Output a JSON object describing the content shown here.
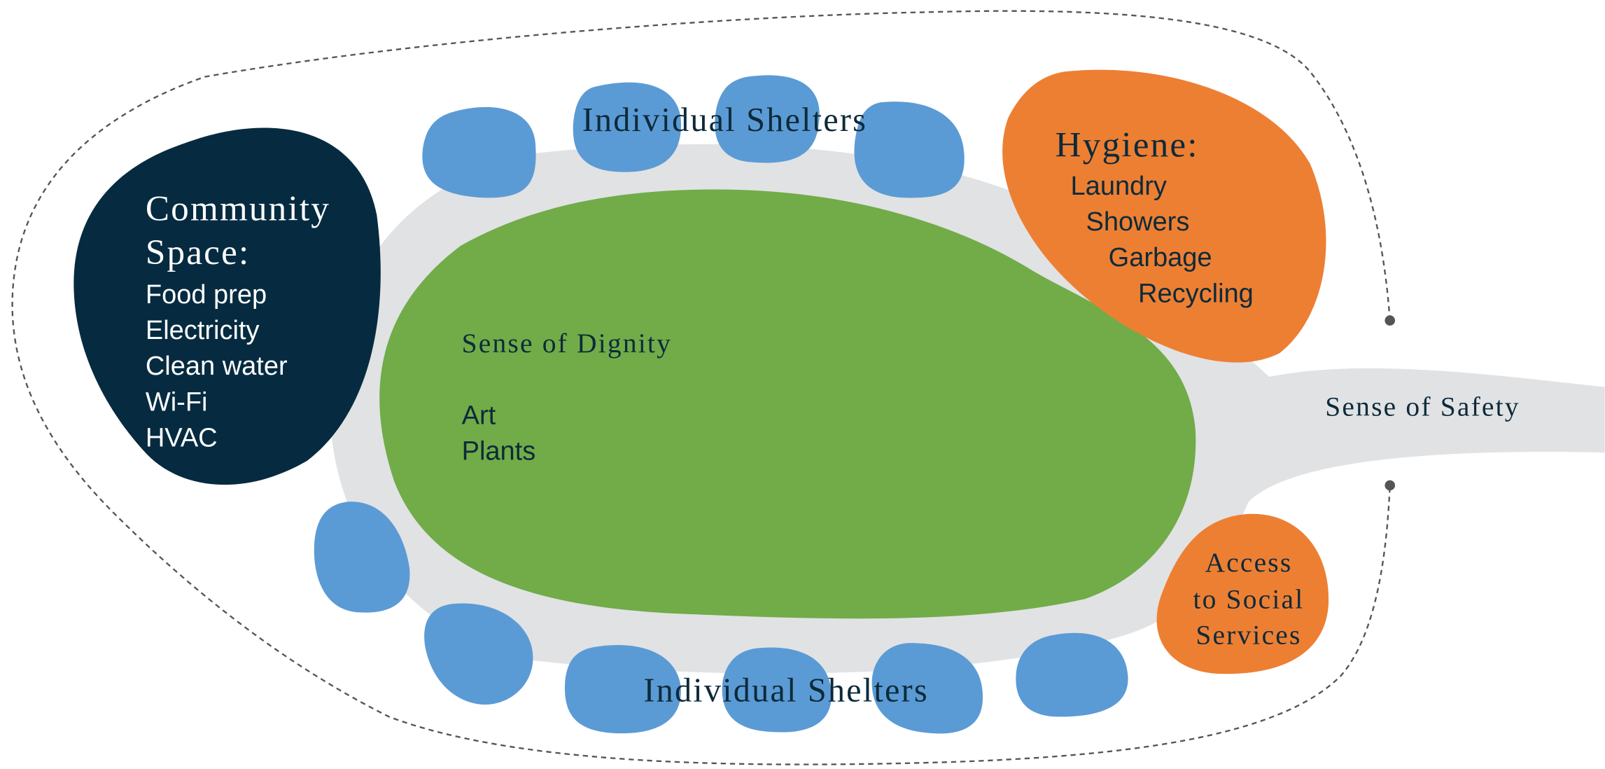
{
  "top_label": "Individual Shelters",
  "bottom_label": "Individual Shelters",
  "community": {
    "title_lines": [
      "Community",
      "Space:"
    ],
    "items": [
      "Food prep",
      "Electricity",
      "Clean water",
      "Wi-Fi",
      "HVAC"
    ]
  },
  "hygiene": {
    "title": "Hygiene:",
    "items": [
      "Laundry",
      "Showers",
      "Garbage",
      "Recycling"
    ]
  },
  "center": {
    "title": "Sense of Dignity",
    "items": [
      "Art",
      "Plants"
    ]
  },
  "social": {
    "lines": [
      "Access",
      "to Social",
      "Services"
    ]
  },
  "safety": "Sense of Safety"
}
